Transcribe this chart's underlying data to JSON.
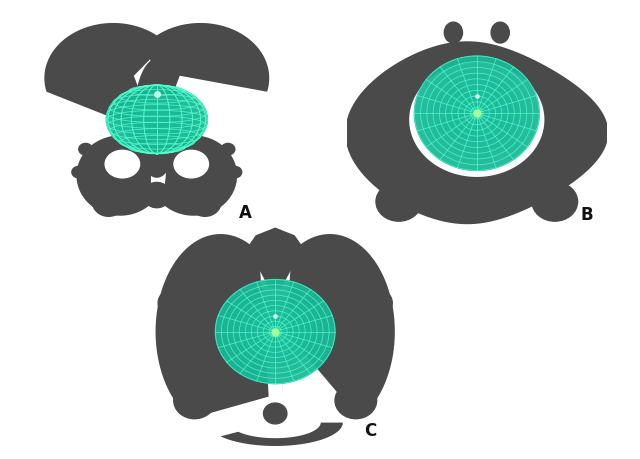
{
  "figure_width": 6.4,
  "figure_height": 4.59,
  "dpi": 100,
  "background_color": "#ffffff",
  "label_A": "A",
  "label_B": "B",
  "label_C": "C",
  "label_fontsize": 12,
  "label_color": "#111111",
  "bone_base": "#4a4a4a",
  "bone_light": "#6a6a6a",
  "bone_dark": "#2a2a2a",
  "head_color": "#1ab898",
  "head_bright": "#40ffcc",
  "head_grid": "#55ffcc",
  "bg": "#ffffff"
}
